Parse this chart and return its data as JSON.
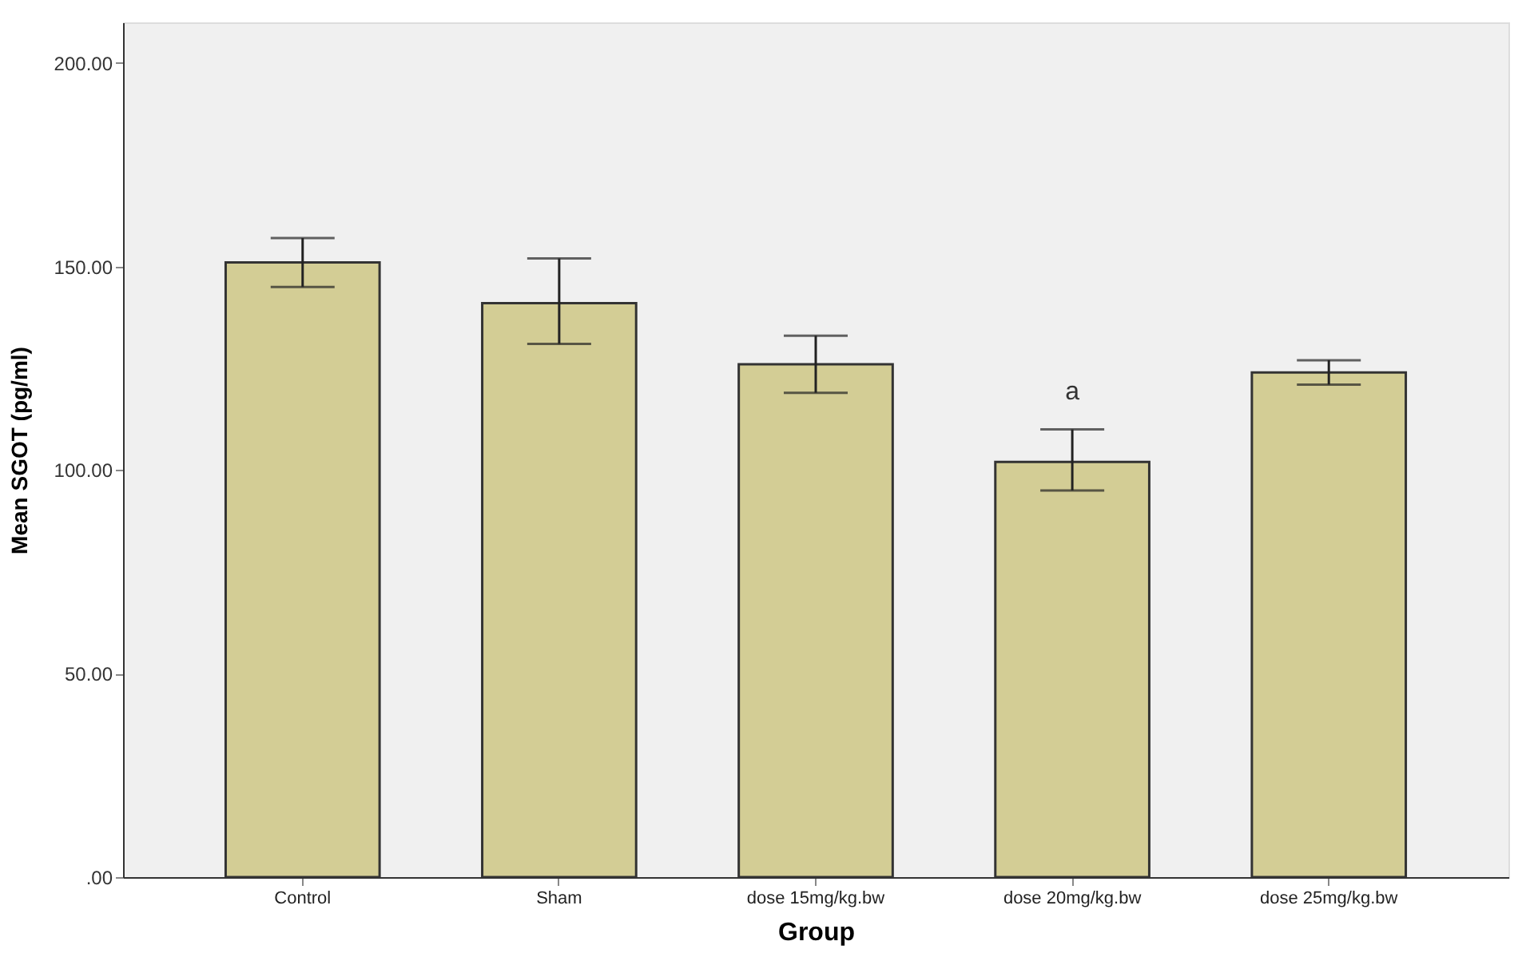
{
  "chart_data": {
    "type": "bar",
    "xlabel": "Group",
    "ylabel": "Mean SGOT (pg/ml)",
    "categories": [
      "Control",
      "Sham",
      "dose 15mg/kg.bw",
      "dose 20mg/kg.bw",
      "dose 25mg/kg.bw"
    ],
    "values": [
      151,
      141,
      126,
      102,
      124
    ],
    "errors": [
      [
        145,
        157
      ],
      [
        131,
        152
      ],
      [
        119,
        133
      ],
      [
        95,
        110
      ],
      [
        121,
        127
      ]
    ],
    "color": "#d3cd95",
    "ylim": [
      0,
      210
    ],
    "yticks": [
      {
        "value": 0,
        "label": ".00"
      },
      {
        "value": 50,
        "label": "50.00"
      },
      {
        "value": 100,
        "label": "100.00"
      },
      {
        "value": 150,
        "label": "150.00"
      },
      {
        "value": 200,
        "label": "200.00"
      }
    ],
    "annotations": [
      {
        "text": "a",
        "x": "dose 20mg/kg.bw",
        "y": 110
      }
    ],
    "grid": false
  }
}
